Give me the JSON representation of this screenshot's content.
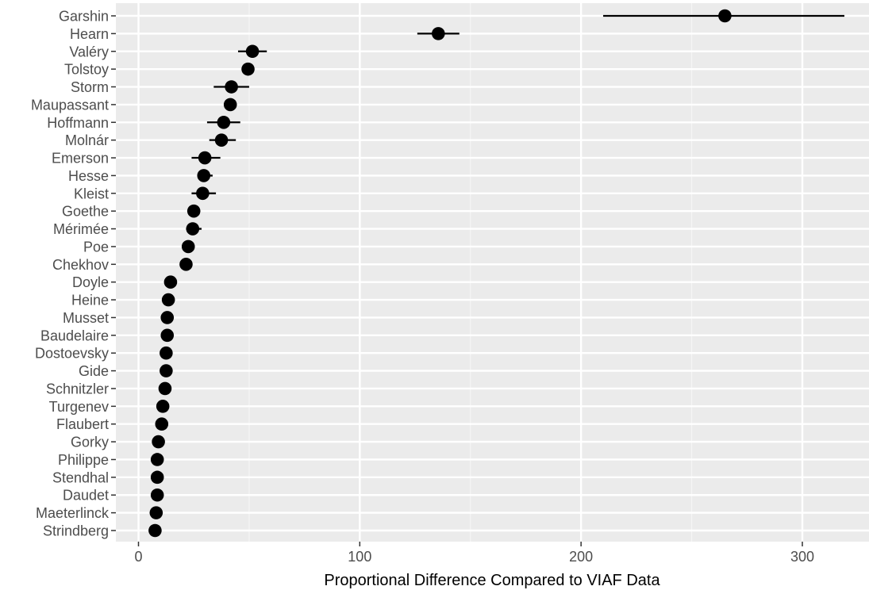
{
  "chart_data": {
    "type": "scatter",
    "title": "",
    "xlabel": "Proportional Difference Compared to VIAF Data",
    "ylabel": "",
    "xlim": [
      -5,
      330
    ],
    "xticks": [
      0,
      100,
      200,
      300
    ],
    "xtick_labels": [
      "0",
      "100",
      "200",
      "300"
    ],
    "grid": true,
    "legend": "none",
    "colors": {
      "panel": "#ebebeb",
      "grid_major": "#ffffff",
      "grid_minor": "#f5f5f5",
      "point": "#000000",
      "tick_text": "#4d4d4d"
    },
    "categories": [
      "Garshin",
      "Hearn",
      "Valéry",
      "Tolstoy",
      "Storm",
      "Maupassant",
      "Hoffmann",
      "Molnár",
      "Emerson",
      "Hesse",
      "Kleist",
      "Goethe",
      "Mérimée",
      "Poe",
      "Chekhov",
      "Doyle",
      "Heine",
      "Musset",
      "Baudelaire",
      "Dostoevsky",
      "Gide",
      "Schnitzler",
      "Turgenev",
      "Flaubert",
      "Gorky",
      "Philippe",
      "Stendhal",
      "Daudet",
      "Maeterlinck",
      "Strindberg"
    ],
    "values": [
      265,
      135.5,
      51.5,
      49.5,
      42,
      41.5,
      38.5,
      37.5,
      30,
      29.5,
      29,
      25,
      24.5,
      22.5,
      21.5,
      14.5,
      13.5,
      13,
      13,
      12.5,
      12.5,
      12,
      11,
      10.5,
      9,
      8.5,
      8.5,
      8.5,
      8,
      7.5
    ],
    "lower": [
      210,
      126,
      45,
      49.5,
      34,
      41.5,
      31,
      32,
      24,
      27.5,
      24,
      25,
      21.5,
      22.5,
      21.5,
      14.5,
      13.5,
      13,
      13,
      12.5,
      12.5,
      12,
      11,
      10.5,
      9,
      8.5,
      8.5,
      8.5,
      8,
      7.5
    ],
    "upper": [
      319,
      145,
      58,
      49.5,
      50,
      41.5,
      46,
      44,
      37,
      33.5,
      35,
      25,
      28.5,
      22.5,
      21.5,
      14.5,
      13.5,
      13,
      13,
      12.5,
      12.5,
      12,
      11,
      10.5,
      9,
      8.5,
      8.5,
      8.5,
      8,
      7.5
    ]
  }
}
